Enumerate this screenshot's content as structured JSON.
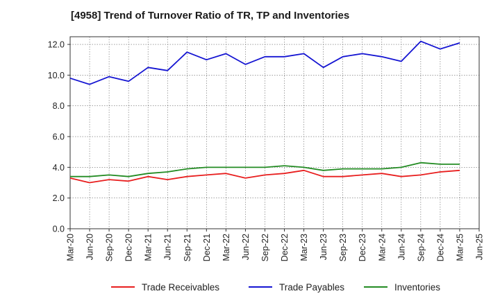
{
  "chart_data": {
    "type": "line",
    "title": "[4958]  Trend of Turnover Ratio of TR, TP and Inventories",
    "xlabel": "",
    "ylabel": "",
    "ylim": [
      0,
      12.5
    ],
    "yticks": [
      "0.0",
      "2.0",
      "4.0",
      "6.0",
      "8.0",
      "10.0",
      "12.0"
    ],
    "ytick_values": [
      0,
      2,
      4,
      6,
      8,
      10,
      12
    ],
    "categories": [
      "Mar-20",
      "Jun-20",
      "Sep-20",
      "Dec-20",
      "Mar-21",
      "Jun-21",
      "Sep-21",
      "Dec-21",
      "Mar-22",
      "Jun-22",
      "Sep-22",
      "Dec-22",
      "Mar-23",
      "Jun-23",
      "Sep-23",
      "Dec-23",
      "Mar-24",
      "Jun-24",
      "Sep-24",
      "Dec-24",
      "Mar-25",
      "Jun-25"
    ],
    "grid": true,
    "legend_position": "bottom",
    "series": [
      {
        "name": "Trade Receivables",
        "color": "#e81e1e",
        "values": [
          3.3,
          3.0,
          3.2,
          3.1,
          3.4,
          3.2,
          3.4,
          3.5,
          3.6,
          3.3,
          3.5,
          3.6,
          3.8,
          3.4,
          3.4,
          3.5,
          3.6,
          3.4,
          3.5,
          3.7,
          3.8,
          null
        ]
      },
      {
        "name": "Trade Payables",
        "color": "#1414d2",
        "values": [
          9.8,
          9.4,
          9.9,
          9.6,
          10.5,
          10.3,
          11.5,
          11.0,
          11.4,
          10.7,
          11.2,
          11.2,
          11.4,
          10.5,
          11.2,
          11.4,
          11.2,
          10.9,
          12.2,
          11.7,
          12.1,
          null
        ]
      },
      {
        "name": "Inventories",
        "color": "#228b22",
        "values": [
          3.4,
          3.4,
          3.5,
          3.4,
          3.6,
          3.7,
          3.9,
          4.0,
          4.0,
          4.0,
          4.0,
          4.1,
          4.0,
          3.8,
          3.9,
          3.9,
          3.9,
          4.0,
          4.3,
          4.2,
          4.2,
          null
        ]
      }
    ]
  }
}
